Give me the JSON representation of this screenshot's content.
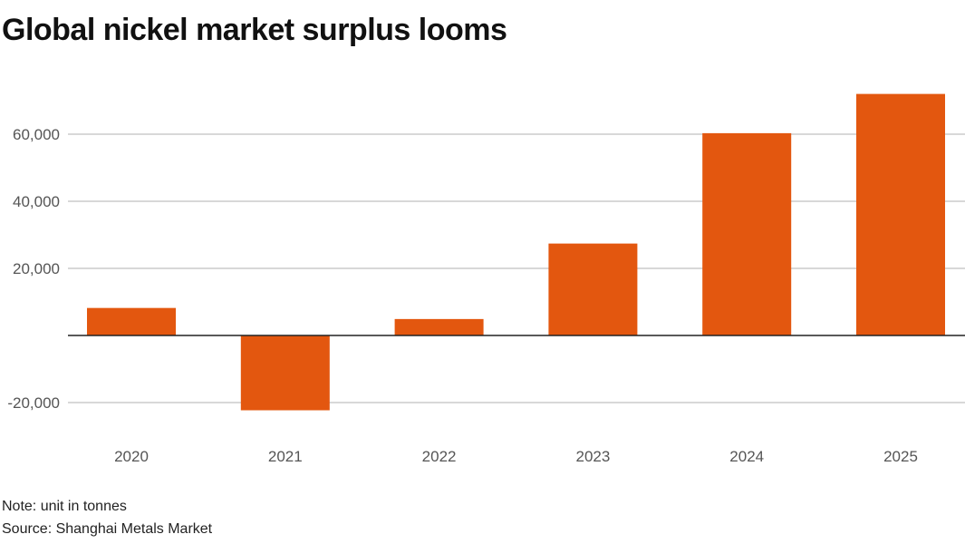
{
  "title": "Global nickel market surplus looms",
  "note": "Note: unit in tonnes",
  "source": "Source: Shanghai Metals Market",
  "colors": {
    "bar": "#e3570f",
    "grid": "#cccccc",
    "axis": "#222222",
    "tick": "#555555"
  },
  "chart_data": {
    "type": "bar",
    "title": "Global nickel market surplus looms",
    "xlabel": "",
    "ylabel": "",
    "categories": [
      "2020",
      "2021",
      "2022",
      "2023",
      "2024",
      "2025"
    ],
    "values": [
      8200,
      -22300,
      4900,
      27400,
      60300,
      72000
    ],
    "yticks": [
      -20000,
      20000,
      40000,
      60000
    ],
    "ytick_labels": [
      "-20,000",
      "20,000",
      "40,000",
      "60,000"
    ],
    "ylim": [
      -25000,
      75000
    ],
    "grid": true
  }
}
